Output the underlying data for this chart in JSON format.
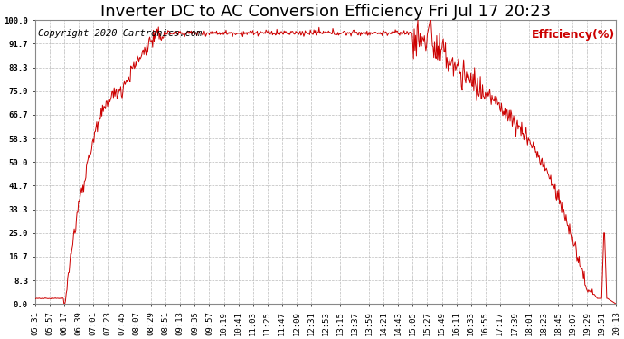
{
  "title": "Inverter DC to AC Conversion Efficiency Fri Jul 17 20:23",
  "copyright": "Copyright 2020 Cartronics.com",
  "ylabel": "Efficiency(%)",
  "line_color": "#cc0000",
  "background_color": "#ffffff",
  "grid_color": "#bbbbbb",
  "yticks": [
    0.0,
    8.3,
    16.7,
    25.0,
    33.3,
    41.7,
    50.0,
    58.3,
    66.7,
    75.0,
    83.3,
    91.7,
    100.0
  ],
  "xlabels": [
    "05:31",
    "05:57",
    "06:17",
    "06:39",
    "07:01",
    "07:23",
    "07:45",
    "08:07",
    "08:29",
    "08:51",
    "09:13",
    "09:35",
    "09:57",
    "10:19",
    "10:41",
    "11:03",
    "11:25",
    "11:47",
    "12:09",
    "12:31",
    "12:53",
    "13:15",
    "13:37",
    "13:59",
    "14:21",
    "14:43",
    "15:05",
    "15:27",
    "15:49",
    "16:11",
    "16:33",
    "16:55",
    "17:17",
    "17:39",
    "18:01",
    "18:23",
    "18:45",
    "19:07",
    "19:29",
    "19:51",
    "20:13"
  ],
  "ymin": 0.0,
  "ymax": 100.0,
  "title_fontsize": 13,
  "copyright_fontsize": 7.5,
  "ylabel_fontsize": 9,
  "tick_fontsize": 6.5
}
